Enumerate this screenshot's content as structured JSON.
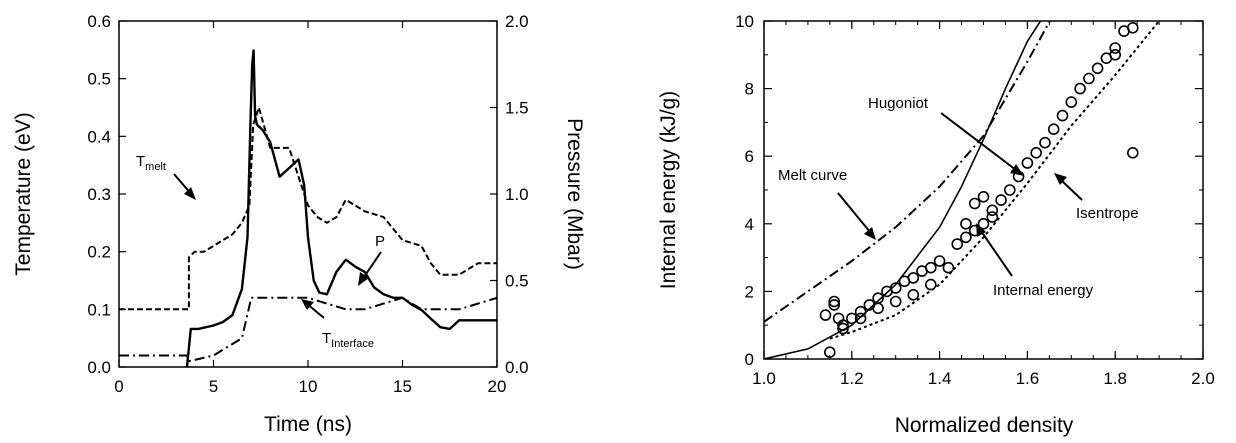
{
  "chart_data": [
    {
      "type": "line",
      "xlabel": "Time (ns)",
      "ylabel": "Temperature (eV)",
      "y2label": "Pressure (Mbar)",
      "xlim": [
        0,
        20
      ],
      "ylim": [
        0,
        0.6
      ],
      "y2lim": [
        0,
        2.0
      ],
      "xticks": [
        "0",
        "5",
        "10",
        "15",
        "20"
      ],
      "yticks": [
        "0.0",
        "0.1",
        "0.2",
        "0.3",
        "0.4",
        "0.5",
        "0.6"
      ],
      "y2ticks": [
        "0.0",
        "0.5",
        "1.0",
        "1.5",
        "2.0"
      ],
      "grid": false,
      "annotations": {
        "tmelt_main": "T",
        "tmelt_sub": "melt",
        "tinterface_main": "T",
        "tinterface_sub": "Interface",
        "p": "P"
      },
      "series": [
        {
          "label": "T melt",
          "style": "dashed",
          "x": [
            0,
            3.7,
            3.7,
            4.0,
            4.5,
            5.0,
            5.5,
            6.0,
            6.5,
            6.9,
            7.1,
            7.4,
            8.0,
            9.0,
            10.0,
            10.5,
            11.0,
            11.5,
            12.0,
            12.5,
            13.0,
            14.0,
            15.0,
            16.0,
            16.5,
            17.0,
            18.0,
            19.0,
            20.0
          ],
          "y": [
            0.1,
            0.1,
            0.19,
            0.2,
            0.2,
            0.21,
            0.22,
            0.23,
            0.25,
            0.28,
            0.42,
            0.45,
            0.38,
            0.38,
            0.28,
            0.26,
            0.25,
            0.26,
            0.29,
            0.28,
            0.27,
            0.26,
            0.22,
            0.21,
            0.18,
            0.16,
            0.16,
            0.18,
            0.18
          ]
        },
        {
          "label": "P",
          "style": "solid",
          "x": [
            3.6,
            3.8,
            4.2,
            5.0,
            5.5,
            6.0,
            6.5,
            6.8,
            6.95,
            7.05,
            7.12,
            7.2,
            7.3,
            7.6,
            8.0,
            8.5,
            9.0,
            9.5,
            9.8,
            10.0,
            10.3,
            10.6,
            11.0,
            11.5,
            12.0,
            12.5,
            13.0,
            13.5,
            14.0,
            14.5,
            15.0,
            15.5,
            16.0,
            16.5,
            17.0,
            17.5,
            18.0,
            19.0,
            20.0
          ],
          "y": [
            0.0,
            0.22,
            0.22,
            0.24,
            0.26,
            0.3,
            0.45,
            0.75,
            1.4,
            1.75,
            1.83,
            1.45,
            1.4,
            1.37,
            1.3,
            1.1,
            1.15,
            1.2,
            1.05,
            0.75,
            0.5,
            0.43,
            0.42,
            0.55,
            0.62,
            0.58,
            0.55,
            0.46,
            0.42,
            0.4,
            0.4,
            0.36,
            0.33,
            0.28,
            0.23,
            0.22,
            0.27,
            0.27,
            0.27
          ]
        },
        {
          "label": "T Interface",
          "style": "dash-dot",
          "x": [
            0,
            3.6,
            3.7,
            5.0,
            6.5,
            7.0,
            8.0,
            9.0,
            10.0,
            11.0,
            12.0,
            13.0,
            14.0,
            15.0,
            16.0,
            17.0,
            18.0,
            19.0,
            20.0
          ],
          "y": [
            0.02,
            0.02,
            0.01,
            0.02,
            0.05,
            0.12,
            0.12,
            0.12,
            0.12,
            0.11,
            0.1,
            0.1,
            0.11,
            0.12,
            0.1,
            0.1,
            0.1,
            0.11,
            0.12
          ]
        }
      ]
    },
    {
      "type": "scatter",
      "xlabel": "Normalized density",
      "ylabel": "Internal energy (kJ/g)",
      "xlim": [
        1.0,
        2.0
      ],
      "ylim": [
        0,
        10
      ],
      "xticks": [
        "1.0",
        "1.2",
        "1.4",
        "1.6",
        "1.8",
        "2.0"
      ],
      "yticks": [
        "0",
        "2",
        "4",
        "6",
        "8",
        "10"
      ],
      "grid": false,
      "annotations": {
        "hugoniot": "Hugoniot",
        "melt": "Melt curve",
        "isentrope": "Isentrope",
        "internal": "Internal energy"
      },
      "series": [
        {
          "label": "Hugoniot",
          "style": "solid",
          "x": [
            1.0,
            1.1,
            1.2,
            1.3,
            1.4,
            1.45,
            1.5,
            1.55,
            1.6,
            1.65
          ],
          "y": [
            0.0,
            0.3,
            1.0,
            2.2,
            3.9,
            5.1,
            6.5,
            8.0,
            9.4,
            10.4
          ]
        },
        {
          "label": "Melt curve",
          "style": "dash-dot",
          "x": [
            1.0,
            1.1,
            1.2,
            1.3,
            1.4,
            1.5,
            1.6,
            1.66
          ],
          "y": [
            1.1,
            2.0,
            2.9,
            3.9,
            5.1,
            6.6,
            8.8,
            10.2
          ]
        },
        {
          "label": "Isentrope",
          "style": "dotted",
          "x": [
            1.15,
            1.2,
            1.3,
            1.4,
            1.5,
            1.6,
            1.7,
            1.8,
            1.9
          ],
          "y": [
            0.6,
            0.8,
            1.3,
            2.2,
            3.6,
            5.2,
            6.9,
            8.4,
            10.0
          ]
        },
        {
          "label": "Internal energy",
          "style": "open-circles",
          "x": [
            1.14,
            1.16,
            1.16,
            1.17,
            1.18,
            1.2,
            1.22,
            1.24,
            1.26,
            1.28,
            1.3,
            1.32,
            1.34,
            1.36,
            1.38,
            1.4,
            1.18,
            1.22,
            1.26,
            1.3,
            1.34,
            1.38,
            1.42,
            1.44,
            1.46,
            1.48,
            1.5,
            1.52,
            1.54,
            1.56,
            1.58,
            1.6,
            1.62,
            1.64,
            1.66,
            1.68,
            1.7,
            1.72,
            1.74,
            1.76,
            1.78,
            1.8,
            1.82,
            1.84,
            1.84,
            1.8,
            1.5,
            1.48,
            1.52,
            1.46,
            1.15
          ],
          "y": [
            1.3,
            1.6,
            1.7,
            1.2,
            0.9,
            1.2,
            1.4,
            1.6,
            1.8,
            2.0,
            2.1,
            2.3,
            2.4,
            2.6,
            2.7,
            2.9,
            1.0,
            1.2,
            1.5,
            1.7,
            1.9,
            2.2,
            2.7,
            3.4,
            3.6,
            3.8,
            4.0,
            4.4,
            4.7,
            5.0,
            5.4,
            5.8,
            6.1,
            6.4,
            6.8,
            7.2,
            7.6,
            8.0,
            8.3,
            8.6,
            8.9,
            9.2,
            9.7,
            9.8,
            6.1,
            9.0,
            4.8,
            4.6,
            4.2,
            4.0,
            0.2
          ]
        }
      ]
    }
  ]
}
